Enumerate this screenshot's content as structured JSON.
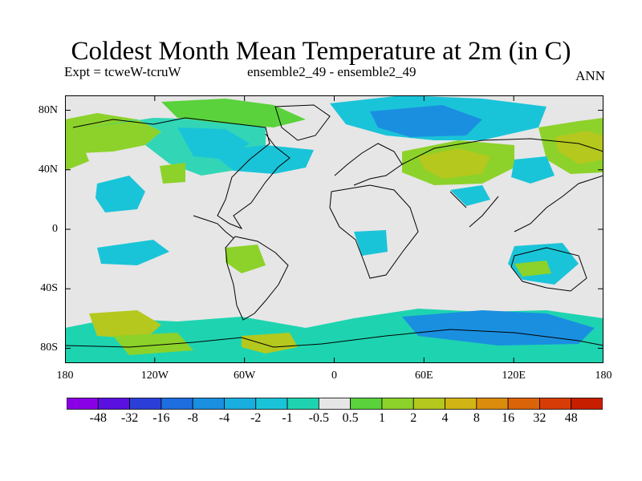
{
  "title": "Coldest Month Mean Temperature at 2m (in C)",
  "experiment": "Expt = tcweW-tcruW",
  "ensemble": "ensemble2_49 - ensemble2_49",
  "period": "ANN",
  "map": {
    "background_color": "#e6e6e6",
    "lat_ticks": [
      {
        "value": 80,
        "label": "80N"
      },
      {
        "value": 40,
        "label": "40N"
      },
      {
        "value": 0,
        "label": "0"
      },
      {
        "value": -40,
        "label": "40S"
      },
      {
        "value": -80,
        "label": "80S"
      }
    ],
    "lon_ticks": [
      {
        "value": -180,
        "label": "180"
      },
      {
        "value": -120,
        "label": "120W"
      },
      {
        "value": -60,
        "label": "60W"
      },
      {
        "value": 0,
        "label": "0"
      },
      {
        "value": 60,
        "label": "60E"
      },
      {
        "value": 120,
        "label": "120E"
      },
      {
        "value": 180,
        "label": "180"
      }
    ],
    "lon_range": [
      -180,
      180
    ],
    "lat_range": [
      -90,
      90
    ]
  },
  "colorbar": {
    "labels": [
      "-48",
      "-32",
      "-16",
      "-8",
      "-4",
      "-2",
      "-1",
      "-0.5",
      "0.5",
      "1",
      "2",
      "4",
      "8",
      "16",
      "32",
      "48"
    ],
    "colors": [
      "#8a00e6",
      "#5a10e0",
      "#2b3fd8",
      "#1e6ee0",
      "#1a8fe0",
      "#19aee0",
      "#1ac4d8",
      "#1ed4b0",
      "#e6e6e6",
      "#5ad23c",
      "#8cd22a",
      "#b4c81e",
      "#d2b414",
      "#dc8c0c",
      "#dc6408",
      "#d83c06",
      "#c81e00"
    ]
  }
}
